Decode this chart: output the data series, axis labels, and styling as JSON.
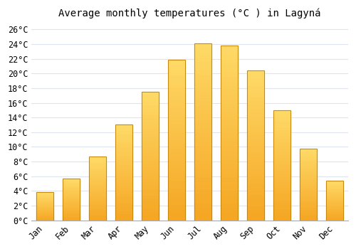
{
  "title": "Average monthly temperatures (°C ) in Lagyná",
  "months": [
    "Jan",
    "Feb",
    "Mar",
    "Apr",
    "May",
    "Jun",
    "Jul",
    "Aug",
    "Sep",
    "Oct",
    "Nov",
    "Dec"
  ],
  "values": [
    3.8,
    5.7,
    8.7,
    13.0,
    17.5,
    21.9,
    24.1,
    23.8,
    20.4,
    15.0,
    9.8,
    5.4
  ],
  "bar_color_bottom": "#F5A623",
  "bar_color_top": "#FFD966",
  "bar_edge_color": "#C8860A",
  "background_color": "#ffffff",
  "grid_color": "#e0e4ef",
  "ylim": [
    0,
    27
  ],
  "yticks": [
    0,
    2,
    4,
    6,
    8,
    10,
    12,
    14,
    16,
    18,
    20,
    22,
    24,
    26
  ],
  "title_fontsize": 10,
  "tick_fontsize": 8.5,
  "figsize": [
    5.0,
    3.5
  ],
  "dpi": 100
}
